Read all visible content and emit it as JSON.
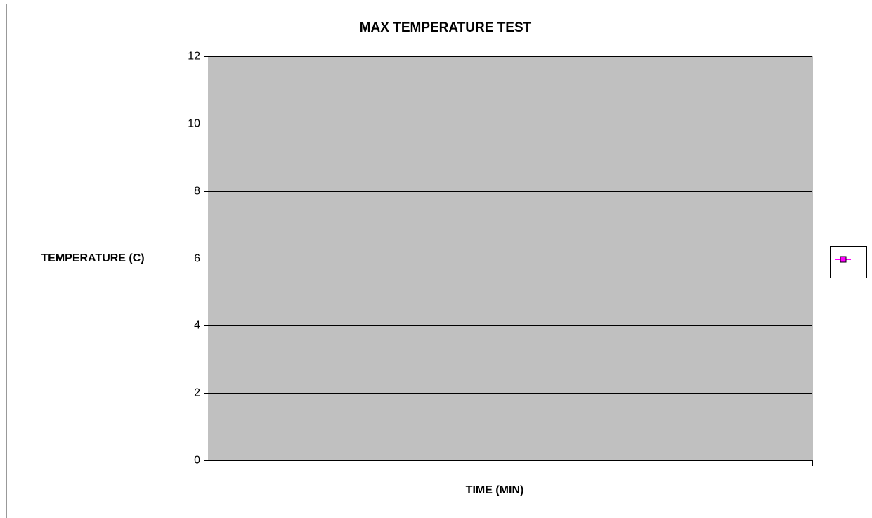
{
  "chart_data": {
    "type": "line",
    "title": "MAX TEMPERATURE TEST",
    "x_label": "TIME (MIN)",
    "y_label": "TEMPERATURE (C)",
    "categories": [],
    "series": [
      {
        "color": "#ff00ff",
        "marker": "square",
        "values": []
      }
    ],
    "ylim": [
      0,
      12
    ],
    "yticks": [
      0,
      2,
      4,
      6,
      8,
      10,
      12
    ],
    "grid": true,
    "plot_background": "#c0c0c0",
    "legend": "right"
  }
}
